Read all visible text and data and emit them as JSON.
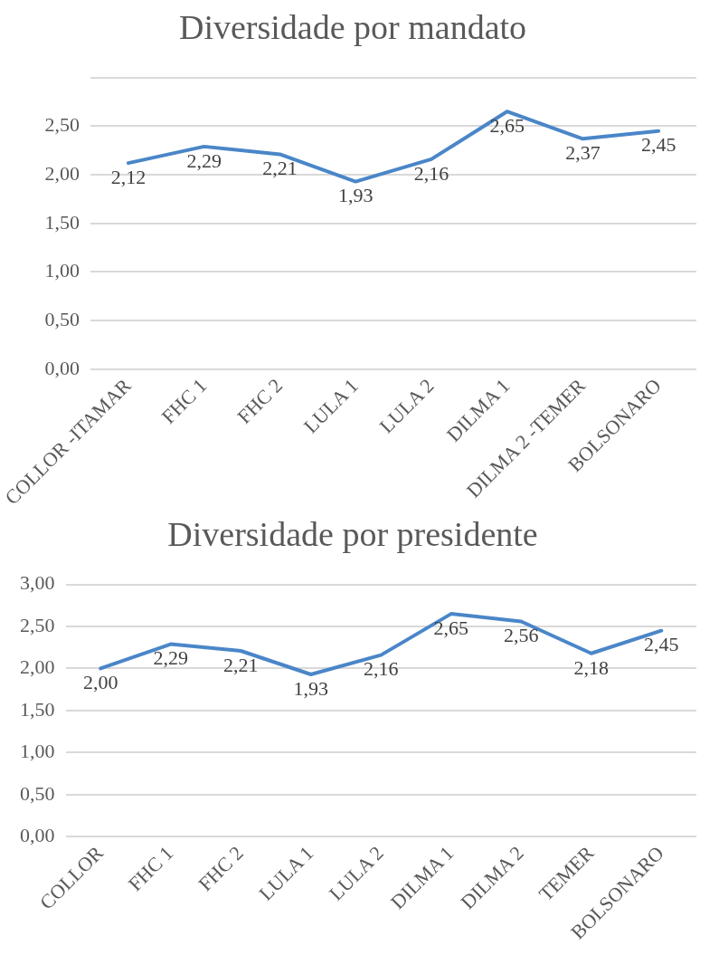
{
  "chart_data": [
    {
      "type": "line",
      "title": "Diversidade por mandato",
      "categories": [
        "COLLOR -ITAMAR",
        "FHC 1",
        "FHC 2",
        "LULA 1",
        "LULA 2",
        "DILMA 1",
        "DILMA 2 -TEMER",
        "BOLSONARO"
      ],
      "series": [
        {
          "color": "#4a86c8",
          "values": [
            2.12,
            2.29,
            2.21,
            1.93,
            2.16,
            2.65,
            2.37,
            2.45
          ]
        }
      ],
      "ylim": [
        0,
        3
      ],
      "yticks": [
        {
          "value": 0,
          "label": "0,00"
        },
        {
          "value": 0.5,
          "label": "0,50"
        },
        {
          "value": 1,
          "label": "1,00"
        },
        {
          "value": 1.5,
          "label": "1,50"
        },
        {
          "value": 2,
          "label": "2,00"
        },
        {
          "value": 2.5,
          "label": "2,50"
        },
        {
          "value": 3,
          "label": null
        }
      ],
      "value_labels": [
        "2,12",
        "2,29",
        "2,21",
        "1,93",
        "2,16",
        "2,65",
        "2,37",
        "2,45"
      ],
      "grid": "y",
      "legend": false,
      "marker": "none",
      "line_style": "solid"
    },
    {
      "type": "line",
      "title": "Diversidade por presidente",
      "categories": [
        "COLLOR",
        "FHC 1",
        "FHC 2",
        "LULA 1",
        "LULA 2",
        "DILMA 1",
        "DILMA 2",
        "TEMER",
        "BOLSONARO"
      ],
      "series": [
        {
          "color": "#4a86c8",
          "values": [
            2.0,
            2.29,
            2.21,
            1.93,
            2.16,
            2.65,
            2.56,
            2.18,
            2.45
          ]
        }
      ],
      "ylim": [
        0,
        3
      ],
      "yticks": [
        {
          "value": 0,
          "label": "0,00"
        },
        {
          "value": 0.5,
          "label": "0,50"
        },
        {
          "value": 1,
          "label": "1,00"
        },
        {
          "value": 1.5,
          "label": "1,50"
        },
        {
          "value": 2,
          "label": "2,00"
        },
        {
          "value": 2.5,
          "label": "2,50"
        },
        {
          "value": 3,
          "label": "3,00"
        }
      ],
      "value_labels": [
        "2,00",
        "2,29",
        "2,21",
        "1,93",
        "2,16",
        "2,65",
        "2,56",
        "2,18",
        "2,45"
      ],
      "grid": "y",
      "legend": false,
      "marker": "none",
      "line_style": "solid"
    }
  ]
}
